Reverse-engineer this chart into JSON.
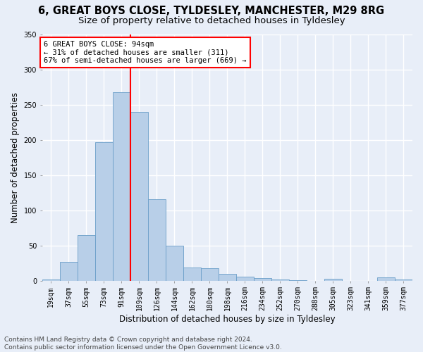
{
  "title": "6, GREAT BOYS CLOSE, TYLDESLEY, MANCHESTER, M29 8RG",
  "subtitle": "Size of property relative to detached houses in Tyldesley",
  "xlabel": "Distribution of detached houses by size in Tyldesley",
  "ylabel": "Number of detached properties",
  "bin_labels": [
    "19sqm",
    "37sqm",
    "55sqm",
    "73sqm",
    "91sqm",
    "109sqm",
    "126sqm",
    "144sqm",
    "162sqm",
    "180sqm",
    "198sqm",
    "216sqm",
    "234sqm",
    "252sqm",
    "270sqm",
    "288sqm",
    "305sqm",
    "323sqm",
    "341sqm",
    "359sqm",
    "377sqm"
  ],
  "bar_heights": [
    2,
    27,
    65,
    197,
    268,
    240,
    116,
    50,
    19,
    18,
    10,
    6,
    4,
    2,
    1,
    0,
    3,
    0,
    0,
    5,
    2
  ],
  "bar_color": "#b8cfe8",
  "bar_edge_color": "#6a9ec8",
  "annotation_text": "6 GREAT BOYS CLOSE: 94sqm\n← 31% of detached houses are smaller (311)\n67% of semi-detached houses are larger (669) →",
  "annotation_box_color": "white",
  "annotation_box_edge": "red",
  "vline_color": "red",
  "vline_x": 4.5,
  "ylim_max": 350,
  "yticks": [
    0,
    50,
    100,
    150,
    200,
    250,
    300,
    350
  ],
  "footer": "Contains HM Land Registry data © Crown copyright and database right 2024.\nContains public sector information licensed under the Open Government Licence v3.0.",
  "background_color": "#e8eef8",
  "grid_color": "white",
  "title_fontsize": 10.5,
  "subtitle_fontsize": 9.5,
  "label_fontsize": 8.5,
  "tick_fontsize": 7,
  "annot_fontsize": 7.5,
  "footer_fontsize": 6.5
}
